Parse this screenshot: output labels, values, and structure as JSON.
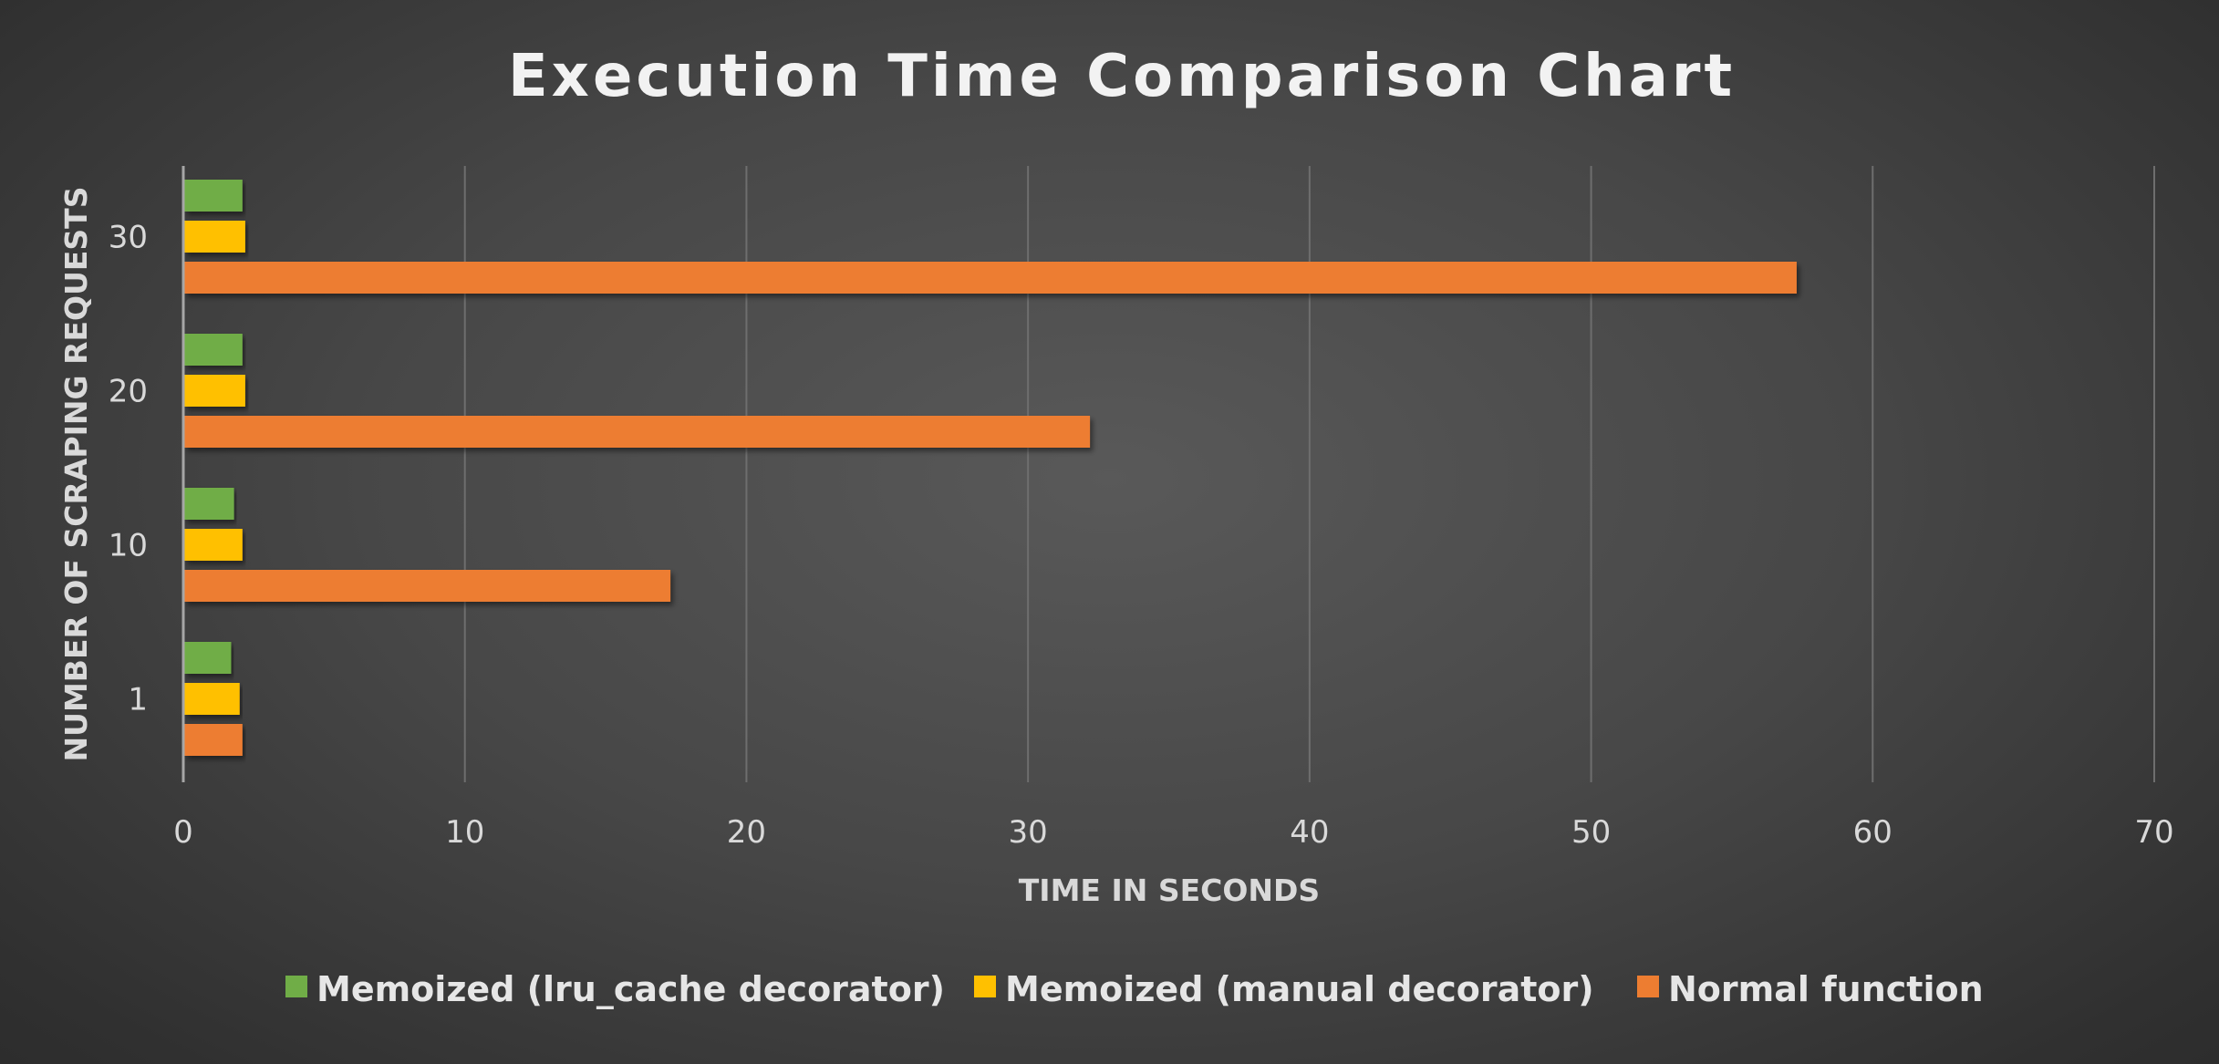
{
  "chart_data": {
    "type": "bar",
    "orientation": "horizontal",
    "title": "Execution Time Comparison Chart",
    "xlabel": "TIME IN SECONDS",
    "ylabel": "NUMBER OF SCRAPING REQUESTS",
    "xlim": [
      0,
      70
    ],
    "x_ticks": [
      "0",
      "10",
      "20",
      "30",
      "40",
      "50",
      "60",
      "70"
    ],
    "categories": [
      "1",
      "10",
      "20",
      "30"
    ],
    "grid": true,
    "legend_position": "bottom",
    "series": [
      {
        "name": "Memoized (lru_cache decorator)",
        "color": "#70ad47",
        "values": [
          1.7,
          1.8,
          2.1,
          2.1
        ]
      },
      {
        "name": "Memoized (manual decorator)",
        "color": "#ffc000",
        "values": [
          2.0,
          2.1,
          2.2,
          2.2
        ]
      },
      {
        "name": "Normal function",
        "color": "#ed7d31",
        "values": [
          2.1,
          17.3,
          32.2,
          57.3
        ]
      }
    ]
  }
}
